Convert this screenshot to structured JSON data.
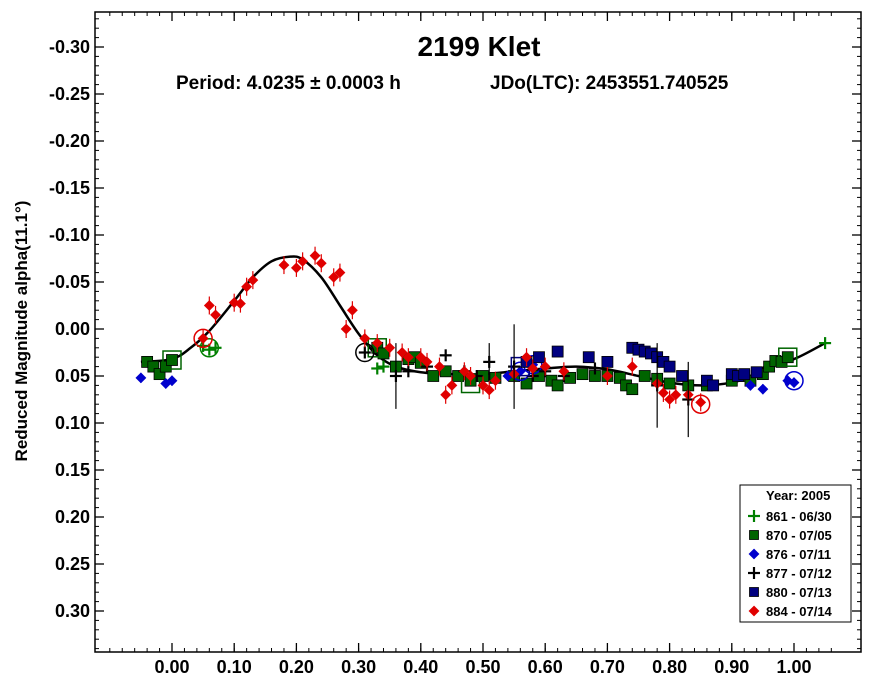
{
  "chart_data": {
    "type": "scatter",
    "title": "2199 Klet",
    "subtitle_period": "Period: 4.0235 ± 0.0003 h",
    "subtitle_epoch": "JDo(LTC): 2453551.740525",
    "ylabel": "Reduced Magnitude alpha(11.1°)",
    "xlabel": "",
    "xlim": [
      -0.12,
      1.07
    ],
    "ylim": [
      0.345,
      -0.345
    ],
    "y_inverted": true,
    "xticks": [
      0.0,
      0.1,
      0.2,
      0.3,
      0.4,
      0.5,
      0.6,
      0.7,
      0.8,
      0.9,
      1.0
    ],
    "xtick_labels": [
      "0.00",
      "0.10",
      "0.20",
      "0.30",
      "0.40",
      "0.50",
      "0.60",
      "0.70",
      "0.80",
      "0.90",
      "1.00"
    ],
    "yticks": [
      -0.3,
      -0.25,
      -0.2,
      -0.15,
      -0.1,
      -0.05,
      0.0,
      0.05,
      0.1,
      0.15,
      0.2,
      0.25,
      0.3
    ],
    "ytick_labels": [
      "-0.30",
      "-0.25",
      "-0.20",
      "-0.15",
      "-0.10",
      "-0.05",
      "0.00",
      "0.05",
      "0.10",
      "0.15",
      "0.20",
      "0.25",
      "0.30"
    ],
    "grid": false,
    "legend": {
      "title": "Year: 2005",
      "placement": "bottom-right"
    },
    "fit_curve": {
      "color": "#000000",
      "points": [
        [
          -0.05,
          0.035
        ],
        [
          0.0,
          0.032
        ],
        [
          0.03,
          0.02
        ],
        [
          0.06,
          0.002
        ],
        [
          0.1,
          -0.03
        ],
        [
          0.13,
          -0.055
        ],
        [
          0.16,
          -0.072
        ],
        [
          0.19,
          -0.077
        ],
        [
          0.21,
          -0.074
        ],
        [
          0.24,
          -0.055
        ],
        [
          0.27,
          -0.025
        ],
        [
          0.3,
          0.005
        ],
        [
          0.33,
          0.028
        ],
        [
          0.36,
          0.04
        ],
        [
          0.4,
          0.046
        ],
        [
          0.45,
          0.048
        ],
        [
          0.5,
          0.048
        ],
        [
          0.55,
          0.045
        ],
        [
          0.6,
          0.042
        ],
        [
          0.65,
          0.04
        ],
        [
          0.7,
          0.043
        ],
        [
          0.75,
          0.05
        ],
        [
          0.8,
          0.057
        ],
        [
          0.85,
          0.06
        ],
        [
          0.9,
          0.057
        ],
        [
          0.93,
          0.05
        ],
        [
          0.96,
          0.038
        ],
        [
          1.0,
          0.032
        ],
        [
          1.05,
          0.015
        ]
      ]
    },
    "series": [
      {
        "name": "861 - 06/30",
        "color": "#008000",
        "marker": "plus",
        "points": [
          [
            0.05,
            0.018
          ],
          [
            0.06,
            0.022
          ],
          [
            0.07,
            0.02
          ],
          [
            0.33,
            0.042
          ],
          [
            0.34,
            0.04
          ],
          [
            1.05,
            0.015
          ]
        ],
        "ringed": [
          [
            0.06,
            0.02
          ]
        ]
      },
      {
        "name": "870 - 07/05",
        "color": "#006400",
        "marker": "square",
        "points": [
          [
            -0.04,
            0.035
          ],
          [
            -0.03,
            0.04
          ],
          [
            -0.02,
            0.048
          ],
          [
            -0.01,
            0.04
          ],
          [
            0.0,
            0.033
          ],
          [
            0.33,
            0.02
          ],
          [
            0.34,
            0.026
          ],
          [
            0.36,
            0.04
          ],
          [
            0.38,
            0.032
          ],
          [
            0.39,
            0.03
          ],
          [
            0.4,
            0.036
          ],
          [
            0.42,
            0.05
          ],
          [
            0.44,
            0.045
          ],
          [
            0.46,
            0.05
          ],
          [
            0.48,
            0.055
          ],
          [
            0.5,
            0.05
          ],
          [
            0.52,
            0.052
          ],
          [
            0.55,
            0.05
          ],
          [
            0.57,
            0.058
          ],
          [
            0.59,
            0.05
          ],
          [
            0.61,
            0.055
          ],
          [
            0.62,
            0.06
          ],
          [
            0.64,
            0.052
          ],
          [
            0.66,
            0.048
          ],
          [
            0.68,
            0.05
          ],
          [
            0.7,
            0.05
          ],
          [
            0.72,
            0.052
          ],
          [
            0.73,
            0.06
          ],
          [
            0.74,
            0.064
          ],
          [
            0.76,
            0.05
          ],
          [
            0.78,
            0.053
          ],
          [
            0.8,
            0.058
          ],
          [
            0.83,
            0.06
          ],
          [
            0.86,
            0.06
          ],
          [
            0.9,
            0.055
          ],
          [
            0.92,
            0.05
          ],
          [
            0.93,
            0.055
          ],
          [
            0.95,
            0.048
          ],
          [
            0.96,
            0.04
          ],
          [
            0.97,
            0.034
          ],
          [
            0.98,
            0.035
          ],
          [
            0.99,
            0.03
          ]
        ],
        "ringed": [
          [
            0.0,
            0.033
          ],
          [
            0.33,
            0.02
          ],
          [
            0.48,
            0.058
          ],
          [
            0.99,
            0.03
          ]
        ]
      },
      {
        "name": "876 - 07/11",
        "color": "#0000cd",
        "marker": "diamond",
        "points": [
          [
            -0.05,
            0.052
          ],
          [
            -0.01,
            0.058
          ],
          [
            0.0,
            0.055
          ],
          [
            0.54,
            0.05
          ],
          [
            0.56,
            0.045
          ],
          [
            0.58,
            0.038
          ],
          [
            0.93,
            0.06
          ],
          [
            0.95,
            0.064
          ],
          [
            0.99,
            0.055
          ],
          [
            1.0,
            0.057
          ]
        ],
        "ringed": [
          [
            0.56,
            0.045
          ],
          [
            0.58,
            0.038
          ],
          [
            1.0,
            0.055
          ]
        ]
      },
      {
        "name": "877 - 07/12",
        "color": "#000000",
        "marker": "plus",
        "points": [
          [
            0.31,
            0.025
          ],
          [
            0.36,
            0.05
          ],
          [
            0.38,
            0.045
          ],
          [
            0.41,
            0.04
          ],
          [
            0.44,
            0.028
          ],
          [
            0.47,
            0.045
          ],
          [
            0.49,
            0.05
          ],
          [
            0.51,
            0.035
          ],
          [
            0.55,
            0.04
          ],
          [
            0.58,
            0.05
          ],
          [
            0.6,
            0.045
          ],
          [
            0.63,
            0.05
          ],
          [
            0.68,
            0.042
          ],
          [
            0.78,
            0.06
          ],
          [
            0.83,
            0.075
          ]
        ],
        "ringed": [
          [
            0.31,
            0.025
          ]
        ]
      },
      {
        "name": "880 - 07/13",
        "color": "#000080",
        "marker": "square",
        "points": [
          [
            0.57,
            0.035
          ],
          [
            0.59,
            0.03
          ],
          [
            0.62,
            0.024
          ],
          [
            0.67,
            0.03
          ],
          [
            0.7,
            0.035
          ],
          [
            0.74,
            0.02
          ],
          [
            0.75,
            0.022
          ],
          [
            0.76,
            0.024
          ],
          [
            0.77,
            0.026
          ],
          [
            0.78,
            0.03
          ],
          [
            0.79,
            0.035
          ],
          [
            0.8,
            0.04
          ],
          [
            0.82,
            0.05
          ],
          [
            0.86,
            0.055
          ],
          [
            0.87,
            0.06
          ],
          [
            0.9,
            0.048
          ],
          [
            0.91,
            0.05
          ],
          [
            0.92,
            0.048
          ],
          [
            0.94,
            0.046
          ]
        ],
        "ringed": [
          [
            0.56,
            0.04
          ]
        ]
      },
      {
        "name": "884 - 07/14",
        "color": "#e00000",
        "marker": "diamond",
        "points": [
          [
            0.05,
            0.01
          ],
          [
            0.06,
            -0.025
          ],
          [
            0.07,
            -0.015
          ],
          [
            0.1,
            -0.028
          ],
          [
            0.11,
            -0.027
          ],
          [
            0.12,
            -0.045
          ],
          [
            0.13,
            -0.052
          ],
          [
            0.18,
            -0.068
          ],
          [
            0.2,
            -0.065
          ],
          [
            0.21,
            -0.072
          ],
          [
            0.23,
            -0.078
          ],
          [
            0.24,
            -0.07
          ],
          [
            0.26,
            -0.055
          ],
          [
            0.27,
            -0.06
          ],
          [
            0.29,
            -0.02
          ],
          [
            0.28,
            0.0
          ],
          [
            0.31,
            0.01
          ],
          [
            0.33,
            0.015
          ],
          [
            0.35,
            0.02
          ],
          [
            0.37,
            0.025
          ],
          [
            0.38,
            0.03
          ],
          [
            0.4,
            0.03
          ],
          [
            0.41,
            0.035
          ],
          [
            0.43,
            0.04
          ],
          [
            0.44,
            0.07
          ],
          [
            0.45,
            0.06
          ],
          [
            0.47,
            0.045
          ],
          [
            0.48,
            0.05
          ],
          [
            0.5,
            0.06
          ],
          [
            0.51,
            0.065
          ],
          [
            0.52,
            0.055
          ],
          [
            0.55,
            0.048
          ],
          [
            0.57,
            0.03
          ],
          [
            0.58,
            0.042
          ],
          [
            0.6,
            0.04
          ],
          [
            0.63,
            0.045
          ],
          [
            0.7,
            0.05
          ],
          [
            0.74,
            0.04
          ],
          [
            0.78,
            0.058
          ],
          [
            0.79,
            0.068
          ],
          [
            0.8,
            0.075
          ],
          [
            0.81,
            0.07
          ],
          [
            0.83,
            0.07
          ],
          [
            0.85,
            0.078
          ]
        ],
        "ringed": [
          [
            0.05,
            0.01
          ],
          [
            0.85,
            0.08
          ]
        ]
      }
    ]
  }
}
